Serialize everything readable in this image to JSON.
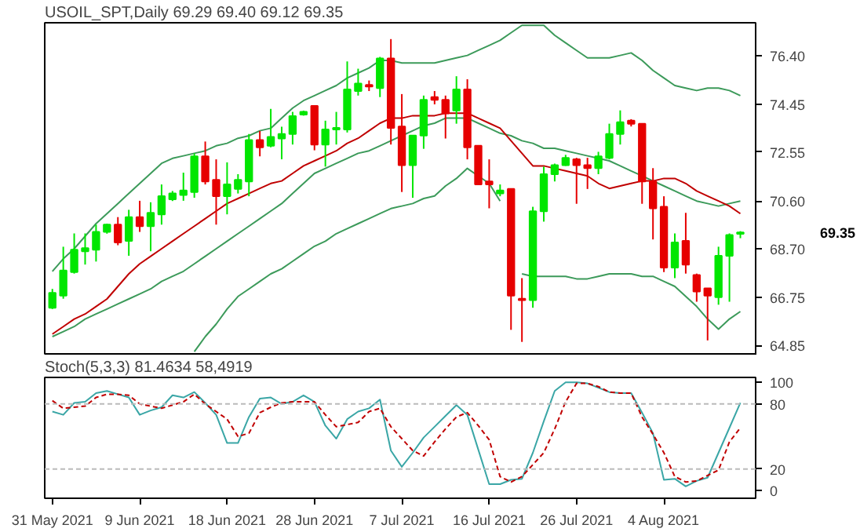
{
  "chart_data": [
    {
      "type": "candlestick",
      "title": "USOIL_SPT,Daily 69.29 69.40 69.12 69.35",
      "tick_labels": "y",
      "ylim": [
        64.45,
        77.7
      ],
      "yticks": [
        {
          "value": 64.85,
          "label": "64.85"
        },
        {
          "value": 66.75,
          "label": "66.75"
        },
        {
          "value": 68.7,
          "label": "68.70"
        },
        {
          "value": 70.6,
          "label": "70.60"
        },
        {
          "value": 72.55,
          "label": "72.55"
        },
        {
          "value": 74.45,
          "label": "74.45"
        },
        {
          "value": 76.4,
          "label": "76.40"
        }
      ],
      "categories": [
        null,
        null,
        null,
        null,
        null,
        null,
        null,
        null,
        null,
        null,
        null,
        null,
        null,
        null,
        null,
        null,
        null,
        null,
        null,
        null,
        null,
        null,
        null,
        null,
        null,
        null,
        null,
        null,
        null,
        null,
        null,
        null,
        null,
        null,
        null,
        null,
        null,
        null,
        null,
        null,
        null,
        null,
        null,
        null,
        null,
        null,
        null,
        null,
        null,
        null,
        null,
        null,
        null,
        null,
        null,
        null,
        null,
        null,
        null,
        null,
        null,
        null,
        null,
        null
      ],
      "ohlc": [
        [
          66.35,
          67.1,
          66.3,
          66.94
        ],
        [
          66.83,
          68.78,
          66.71,
          67.83
        ],
        [
          67.77,
          69.31,
          67.71,
          68.66
        ],
        [
          68.6,
          69.31,
          68.07,
          68.72
        ],
        [
          68.66,
          69.66,
          68.19,
          69.37
        ],
        [
          69.37,
          69.7,
          69.3,
          69.66
        ],
        [
          69.66,
          69.96,
          68.84,
          68.95
        ],
        [
          69.01,
          70.25,
          68.42,
          69.96
        ],
        [
          69.96,
          70.61,
          69.37,
          69.6
        ],
        [
          69.6,
          70.55,
          68.6,
          70.13
        ],
        [
          70.07,
          71.26,
          69.66,
          70.79
        ],
        [
          70.67,
          71.0,
          70.6,
          70.9
        ],
        [
          70.84,
          71.73,
          70.61,
          71.02
        ],
        [
          70.96,
          72.5,
          70.73,
          72.38
        ],
        [
          72.38,
          72.97,
          71.26,
          71.38
        ],
        [
          71.44,
          72.26,
          69.66,
          70.79
        ],
        [
          70.79,
          72.14,
          70.07,
          71.26
        ],
        [
          71.08,
          71.67,
          70.9,
          71.44
        ],
        [
          71.38,
          73.27,
          70.79,
          73.03
        ],
        [
          73.03,
          73.39,
          72.38,
          72.74
        ],
        [
          72.8,
          74.27,
          72.74,
          73.15
        ],
        [
          73.09,
          73.56,
          72.26,
          73.27
        ],
        [
          73.27,
          74.15,
          72.85,
          73.98
        ],
        [
          74.04,
          74.2,
          74.0,
          74.15
        ],
        [
          74.39,
          74.39,
          72.62,
          72.85
        ],
        [
          72.85,
          73.8,
          71.97,
          73.45
        ],
        [
          73.45,
          74.15,
          72.85,
          73.51
        ],
        [
          73.45,
          76.16,
          73.33,
          75.04
        ],
        [
          74.98,
          75.87,
          74.8,
          75.28
        ],
        [
          75.22,
          75.4,
          74.98,
          75.16
        ],
        [
          75.1,
          76.34,
          74.74,
          76.28
        ],
        [
          76.28,
          77.05,
          72.85,
          73.51
        ],
        [
          73.57,
          74.86,
          70.96,
          72.03
        ],
        [
          72.03,
          73.21,
          70.73,
          73.21
        ],
        [
          73.21,
          74.8,
          72.68,
          74.63
        ],
        [
          74.74,
          74.98,
          74.45,
          74.63
        ],
        [
          74.63,
          74.8,
          73.09,
          74.09
        ],
        [
          74.21,
          75.57,
          73.68,
          75.04
        ],
        [
          75.04,
          75.45,
          72.26,
          72.74
        ],
        [
          72.8,
          72.8,
          71.26,
          71.26
        ],
        [
          71.38,
          72.26,
          70.31,
          71.26
        ],
        [
          70.9,
          71.26,
          70.79,
          71.02
        ],
        [
          71.08,
          71.08,
          65.47,
          66.83
        ],
        [
          66.71,
          67.53,
          64.99,
          66.65
        ],
        [
          66.65,
          70.37,
          66.35,
          70.19
        ],
        [
          70.19,
          71.97,
          69.78,
          71.67
        ],
        [
          71.67,
          72.09,
          71.38,
          72.03
        ],
        [
          72.03,
          72.44,
          72.0,
          72.32
        ],
        [
          72.26,
          72.32,
          70.49,
          72.03
        ],
        [
          72.03,
          72.32,
          71.08,
          71.91
        ],
        [
          71.91,
          72.56,
          71.67,
          72.38
        ],
        [
          72.32,
          73.68,
          72.26,
          73.27
        ],
        [
          73.27,
          74.21,
          72.85,
          73.74
        ],
        [
          73.8,
          73.86,
          73.57,
          73.68
        ],
        [
          73.68,
          73.68,
          70.49,
          71.38
        ],
        [
          71.38,
          71.91,
          69.07,
          70.31
        ],
        [
          70.37,
          70.79,
          67.77,
          67.95
        ],
        [
          67.95,
          69.31,
          67.53,
          68.95
        ],
        [
          69.01,
          70.13,
          67.71,
          68.07
        ],
        [
          67.65,
          67.71,
          66.59,
          67.0
        ],
        [
          67.12,
          67.12,
          65.05,
          66.83
        ],
        [
          66.77,
          68.78,
          66.47,
          68.42
        ],
        [
          68.42,
          69.31,
          66.59,
          69.25
        ],
        [
          69.29,
          69.4,
          69.12,
          69.35
        ]
      ],
      "colors": [
        "#00e600",
        "#00e600",
        "#00e600",
        "#00e600",
        "#00e600",
        "#00e600",
        "#e60000",
        "#00e600",
        "#e60000",
        "#00e600",
        "#00e600",
        "#00e600",
        "#00e600",
        "#00e600",
        "#e60000",
        "#e60000",
        "#00e600",
        "#00e600",
        "#00e600",
        "#e60000",
        "#00e600",
        "#00e600",
        "#00e600",
        "#00e600",
        "#e60000",
        "#00e600",
        "#00e600",
        "#00e600",
        "#00e600",
        "#e60000",
        "#00e600",
        "#e60000",
        "#e60000",
        "#00e600",
        "#00e600",
        "#e60000",
        "#e60000",
        "#00e600",
        "#e60000",
        "#e60000",
        "#e60000",
        "#00e600",
        "#e60000",
        "#e60000",
        "#00e600",
        "#00e600",
        "#00e600",
        "#00e600",
        "#e60000",
        "#e60000",
        "#00e600",
        "#00e600",
        "#00e600",
        "#e60000",
        "#e60000",
        "#e60000",
        "#e60000",
        "#00e600",
        "#e60000",
        "#e60000",
        "#e60000",
        "#00e600",
        "#00e600",
        "#00e600"
      ],
      "series": [
        {
          "type": "line",
          "color": "#3c9a5a",
          "values": [
            67.8,
            68.3,
            68.7,
            69.2,
            69.7,
            70.1,
            70.5,
            70.9,
            71.3,
            71.7,
            72.1,
            72.3,
            72.4,
            72.5,
            72.6,
            72.8,
            72.9,
            73.1,
            73.2,
            73.4,
            73.5,
            73.9,
            74.3,
            74.6,
            74.8,
            75.0,
            75.2,
            75.5,
            75.7,
            75.9,
            76.2,
            76.2,
            76.1,
            76.1,
            76.1,
            76.1,
            76.2,
            76.3,
            76.4,
            76.6,
            76.8,
            77.0,
            77.3,
            77.6,
            77.6,
            77.6,
            77.2,
            76.9,
            76.6,
            76.3,
            76.3,
            76.3,
            76.4,
            76.5,
            76.2,
            75.8,
            75.5,
            75.2,
            75.1,
            75.0,
            75.1,
            75.1,
            75.0,
            74.8
          ]
        },
        {
          "type": "line",
          "color": "#3c9a5a",
          "values": [
            65.2,
            65.4,
            65.6,
            65.9,
            66.1,
            66.3,
            66.5,
            66.7,
            66.9,
            67.1,
            67.4,
            67.6,
            67.8,
            68.1,
            68.4,
            68.7,
            69.0,
            69.3,
            69.6,
            69.9,
            70.2,
            70.5,
            70.9,
            71.3,
            71.7,
            71.9,
            72.1,
            72.3,
            72.5,
            72.6,
            72.8,
            73.0,
            73.2,
            73.4,
            73.6,
            73.7,
            73.9,
            73.9,
            73.9,
            73.7,
            73.5,
            73.3,
            73.2,
            73.0,
            72.9,
            72.7,
            72.7,
            72.6,
            72.5,
            72.4,
            72.3,
            72.2,
            72.0,
            71.8,
            71.6,
            71.4,
            71.2,
            71.0,
            70.8,
            70.6,
            70.5,
            70.4,
            70.5,
            70.6
          ]
        },
        {
          "type": "line",
          "color": "#3c9a5a",
          "values": [
            null,
            null,
            null,
            null,
            null,
            null,
            null,
            null,
            null,
            null,
            null,
            null,
            null,
            64.6,
            65.2,
            65.7,
            66.3,
            66.8,
            67.1,
            67.4,
            67.7,
            67.9,
            68.2,
            68.5,
            68.8,
            69.0,
            69.3,
            69.5,
            69.7,
            69.9,
            70.1,
            70.3,
            70.4,
            70.5,
            70.7,
            70.8,
            71.2,
            71.5,
            71.9,
            71.6,
            71.3,
            70.6,
            null,
            67.7,
            67.6,
            67.6,
            67.6,
            67.6,
            67.5,
            67.5,
            67.6,
            67.7,
            67.7,
            67.7,
            67.6,
            67.6,
            67.4,
            67.2,
            66.8,
            66.4,
            65.9,
            65.5,
            65.9,
            66.2
          ]
        },
        {
          "type": "line",
          "color": "#c00000",
          "values": [
            65.3,
            65.6,
            65.9,
            66.1,
            66.4,
            66.7,
            67.2,
            67.7,
            68.1,
            68.4,
            68.7,
            69.0,
            69.3,
            69.6,
            69.9,
            70.2,
            70.5,
            70.7,
            70.9,
            71.1,
            71.3,
            71.4,
            71.7,
            72.0,
            72.2,
            72.4,
            72.6,
            72.9,
            73.1,
            73.4,
            73.7,
            73.9,
            73.9,
            74.0,
            74.0,
            74.0,
            74.1,
            74.1,
            74.1,
            73.9,
            73.7,
            73.5,
            73.0,
            72.5,
            72.0,
            72.0,
            71.9,
            71.8,
            71.7,
            71.6,
            71.3,
            71.1,
            71.2,
            71.3,
            71.4,
            71.4,
            71.5,
            71.5,
            71.3,
            71.0,
            70.8,
            70.6,
            70.4,
            70.1
          ]
        }
      ],
      "annotations": [
        "69.35"
      ]
    },
    {
      "type": "line",
      "title": "Stoch(5,3,3) 81.4634 58,4919",
      "ylim": [
        -7,
        104.5
      ],
      "yticks": [
        0,
        20,
        80,
        100
      ],
      "categories": [
        "31 May 2021",
        null,
        null,
        null,
        null,
        null,
        null,
        null,
        "9 Jun 2021",
        null,
        null,
        null,
        null,
        null,
        null,
        null,
        "18 Jun 2021",
        null,
        null,
        null,
        null,
        null,
        null,
        null,
        "28 Jun 2021",
        null,
        null,
        null,
        null,
        null,
        null,
        null,
        "7 Jul 2021",
        null,
        null,
        null,
        null,
        null,
        null,
        null,
        "16 Jul 2021",
        null,
        null,
        null,
        null,
        null,
        null,
        null,
        "26 Jul 2021",
        null,
        null,
        null,
        null,
        null,
        null,
        null,
        "4 Aug 2021",
        null,
        null,
        null,
        null,
        null,
        null,
        null
      ],
      "ref_lines": [
        {
          "axis": "y",
          "value": 20,
          "label": null,
          "color": "#bbbbbb",
          "line_style": "dashed"
        },
        {
          "axis": "y",
          "value": 80,
          "label": null,
          "color": "#bbbbbb",
          "line_style": "dashed"
        }
      ],
      "series": [
        {
          "color": "#3aa6a6",
          "line_style": "solid",
          "values": [
            73,
            70,
            81,
            82,
            90,
            92,
            89,
            86,
            70,
            74,
            77,
            88,
            86,
            91,
            81,
            70,
            44,
            44,
            68,
            85,
            86,
            80,
            82,
            88,
            82,
            60,
            48,
            66,
            73,
            76,
            84,
            37,
            22,
            35,
            49,
            59,
            69,
            79,
            70,
            38,
            6,
            6,
            10,
            11,
            35,
            64,
            92,
            100,
            100,
            99,
            95,
            91,
            90,
            90,
            72,
            53,
            10,
            11,
            4,
            9,
            12,
            35,
            58,
            81
          ]
        },
        {
          "color": "#c00000",
          "line_style": "dashed",
          "values": [
            83,
            76,
            77,
            78,
            86,
            89,
            89,
            88,
            80,
            78,
            76,
            79,
            82,
            89,
            80,
            73,
            66,
            50,
            53,
            72,
            77,
            81,
            82,
            82,
            82,
            70,
            59,
            61,
            63,
            73,
            76,
            59,
            48,
            37,
            32,
            45,
            57,
            68,
            72,
            60,
            47,
            13,
            8,
            13,
            24,
            35,
            57,
            82,
            99,
            99,
            96,
            91,
            90,
            90,
            68,
            52,
            35,
            13,
            8,
            9,
            14,
            19,
            45,
            58
          ]
        }
      ]
    }
  ]
}
